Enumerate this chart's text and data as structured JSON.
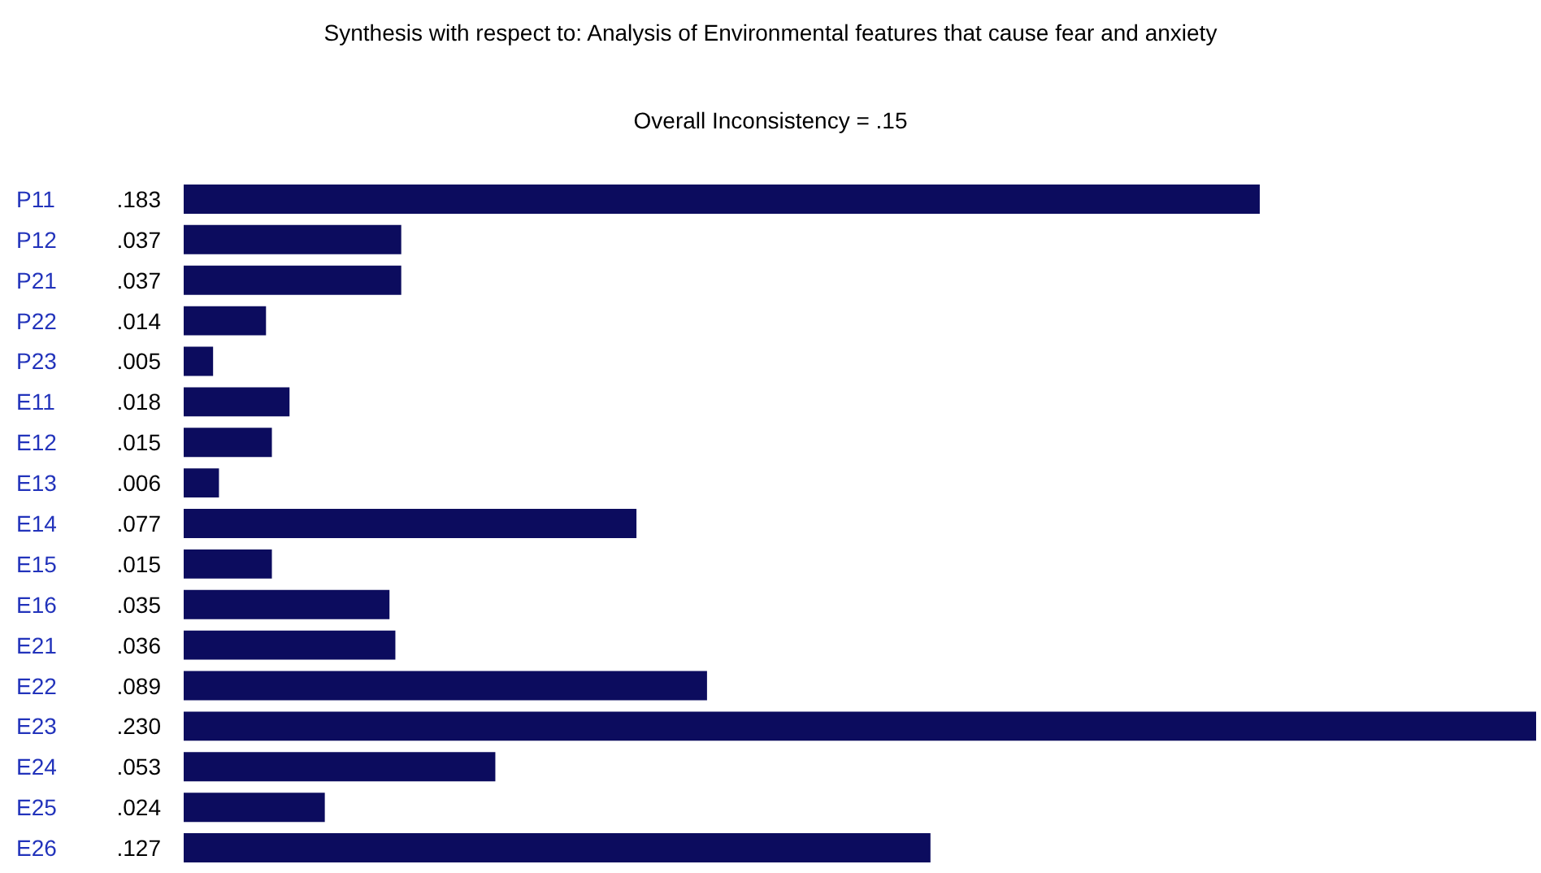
{
  "chart_data": {
    "type": "bar",
    "orientation": "horizontal",
    "title": "Synthesis with respect to: Analysis of Environmental features that cause fear and anxiety",
    "subtitle": "Overall Inconsistency = .15",
    "categories": [
      "P11",
      "P12",
      "P21",
      "P22",
      "P23",
      "E11",
      "E12",
      "E13",
      "E14",
      "E15",
      "E16",
      "E21",
      "E22",
      "E23",
      "E24",
      "E25",
      "E26"
    ],
    "values": [
      0.183,
      0.037,
      0.037,
      0.014,
      0.005,
      0.018,
      0.015,
      0.006,
      0.077,
      0.015,
      0.035,
      0.036,
      0.089,
      0.23,
      0.053,
      0.024,
      0.127
    ],
    "value_labels": [
      ".183",
      ".037",
      ".037",
      ".014",
      ".005",
      ".018",
      ".015",
      ".006",
      ".077",
      ".015",
      ".035",
      ".036",
      ".089",
      ".230",
      ".053",
      ".024",
      ".127"
    ],
    "color": "#0c0c5e"
  }
}
